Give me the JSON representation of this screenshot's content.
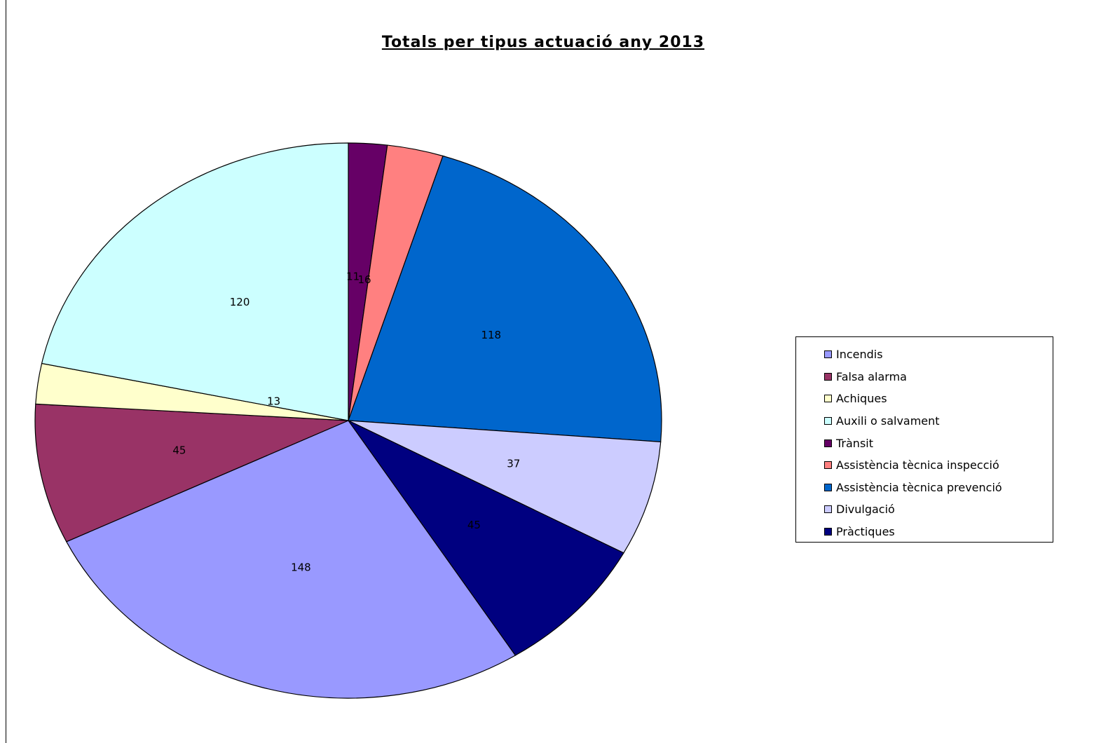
{
  "chart_data": {
    "type": "pie",
    "title": "Totals per tipus actuació any 2013",
    "legend_position": "right",
    "slices": [
      {
        "label": "Incendis",
        "value": 148,
        "color": "#9999ff"
      },
      {
        "label": "Falsa alarma",
        "value": 45,
        "color": "#993366"
      },
      {
        "label": "Achiques",
        "value": 13,
        "color": "#ffffcc"
      },
      {
        "label": "Auxili o salvament",
        "value": 120,
        "color": "#ccffff"
      },
      {
        "label": "Trànsit",
        "value": 11,
        "color": "#660066"
      },
      {
        "label": "Assistència tècnica inspecció",
        "value": 16,
        "color": "#ff8080"
      },
      {
        "label": "Assistència tècnica prevenció",
        "value": 118,
        "color": "#0066cc"
      },
      {
        "label": "Divulgació",
        "value": 37,
        "color": "#ccccff"
      },
      {
        "label": "Pràctiques",
        "value": 45,
        "color": "#000080"
      }
    ]
  }
}
